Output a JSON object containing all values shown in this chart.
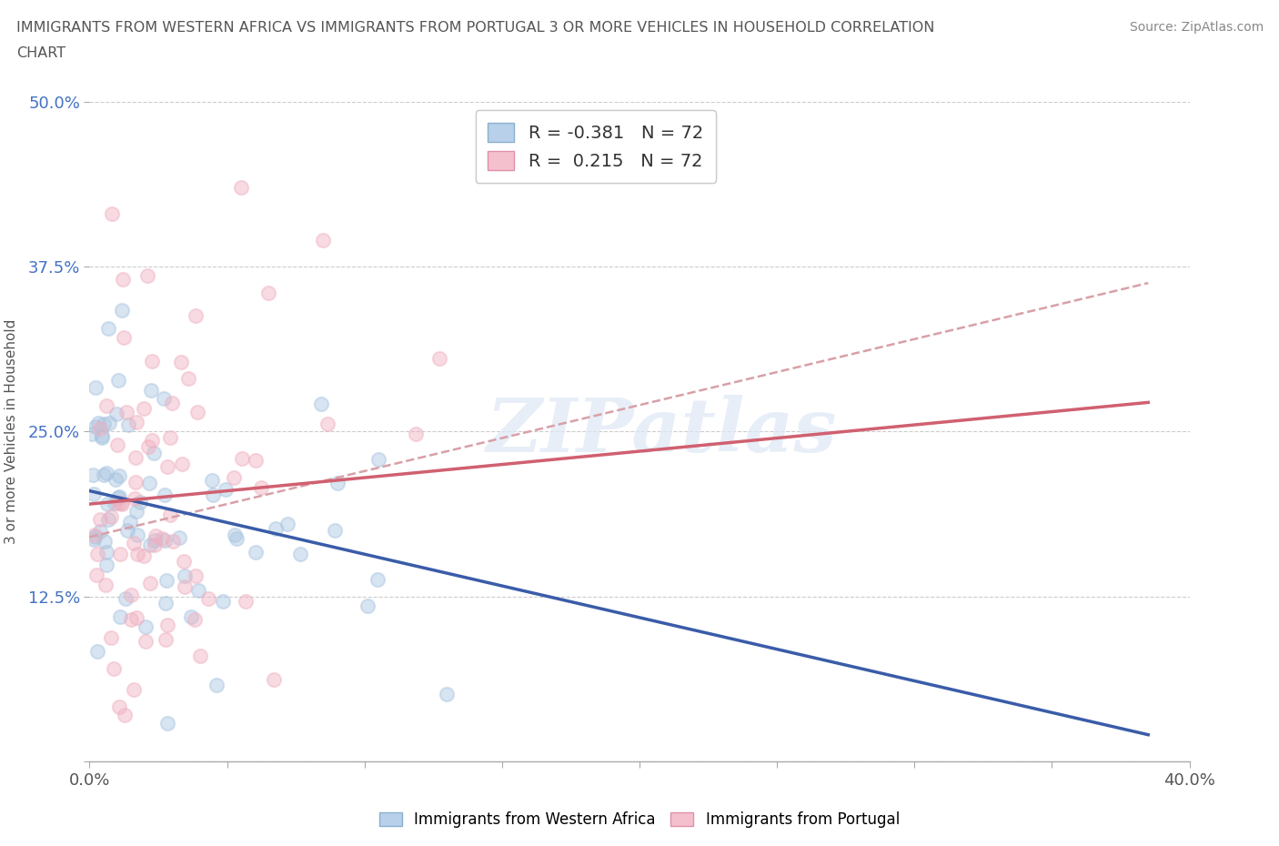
{
  "title_line1": "IMMIGRANTS FROM WESTERN AFRICA VS IMMIGRANTS FROM PORTUGAL 3 OR MORE VEHICLES IN HOUSEHOLD CORRELATION",
  "title_line2": "CHART",
  "source_text": "Source: ZipAtlas.com",
  "ylabel": "3 or more Vehicles in Household",
  "xlim": [
    0.0,
    0.4
  ],
  "ylim": [
    0.0,
    0.5
  ],
  "xticks": [
    0.0,
    0.05,
    0.1,
    0.15,
    0.2,
    0.25,
    0.3,
    0.35,
    0.4
  ],
  "yticks": [
    0.0,
    0.125,
    0.25,
    0.375,
    0.5
  ],
  "xtick_labels_show": [
    "0.0%",
    "40.0%"
  ],
  "ytick_labels": [
    "",
    "12.5%",
    "25.0%",
    "37.5%",
    "50.0%"
  ],
  "background_color": "#ffffff",
  "legend_label_west": "Immigrants from Western Africa",
  "legend_label_port": "Immigrants from Portugal",
  "wa_color": "#a8c4e0",
  "pt_color": "#f0b0c0",
  "wa_trend_color": "#3a5ca8",
  "pt_trend_color": "#d06070",
  "pt_dashed_color": "#d8a0a8",
  "watermark_text": "ZIPatlas",
  "R_wa": -0.381,
  "R_pt": 0.215,
  "N": 72
}
